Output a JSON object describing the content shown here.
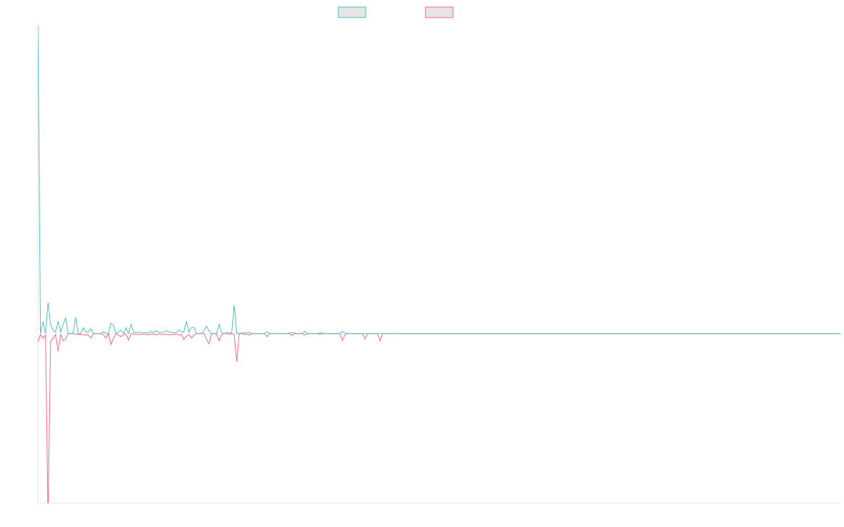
{
  "chart_data": {
    "type": "line",
    "title": "",
    "xlabel": "",
    "ylabel": "",
    "ylim": [
      -55,
      100
    ],
    "grid": false,
    "legend_placement": "top",
    "series": [
      {
        "color": "#4bc0c0",
        "values": [
          100,
          0,
          3.9,
          0,
          10,
          3,
          1,
          0.5,
          4,
          0.5,
          3,
          5,
          0,
          0,
          0.2,
          5.3,
          0,
          0,
          1.9,
          0.5,
          0.5,
          1.5,
          0,
          0,
          0,
          0,
          0.7,
          0,
          0,
          3.4,
          2.6,
          0,
          0.5,
          1.1,
          0,
          1.9,
          0,
          3,
          0.3,
          0.3,
          0.5,
          0.3,
          0.2,
          0.3,
          0.2,
          0.8,
          0.2,
          1,
          0.3,
          0.3,
          0.5,
          1,
          0.5,
          0.5,
          0.2,
          0.3,
          1.2,
          0.5,
          0.5,
          4,
          0.5,
          2,
          2,
          0,
          0,
          0,
          1,
          2.4,
          0.8,
          0,
          0,
          0,
          3,
          0.3,
          0,
          0.3,
          0.3,
          0,
          9.3,
          0,
          0,
          0.2,
          0.2,
          0.3,
          0.3,
          0,
          0,
          0,
          0,
          0,
          0,
          0.6,
          0,
          0,
          0,
          0,
          0,
          0,
          0,
          0,
          0.2,
          0.3,
          0.2,
          0,
          0,
          0,
          0.8,
          0,
          0,
          0,
          0,
          0,
          0.2,
          0.2,
          0,
          0,
          0,
          0,
          0,
          0,
          0,
          0.7,
          0.2,
          0,
          0,
          0,
          0,
          0,
          0,
          0,
          0,
          0,
          0,
          0,
          0,
          0,
          0,
          0,
          0,
          0,
          0,
          0.1,
          0,
          0,
          0,
          0,
          0,
          0,
          0,
          0,
          0,
          0,
          0,
          0,
          0,
          0,
          0,
          0,
          0,
          0,
          0,
          0,
          0,
          0,
          0,
          0,
          0,
          0,
          0,
          0,
          0,
          0,
          0,
          0,
          0,
          0,
          0,
          0,
          0,
          0,
          0,
          0,
          0,
          0,
          0,
          0,
          0,
          0,
          0,
          0,
          0,
          0,
          0,
          0,
          0,
          0,
          0,
          0,
          0,
          0,
          0,
          0,
          0,
          0,
          0,
          0,
          0,
          0,
          0,
          0,
          0,
          0,
          0,
          0,
          0,
          0,
          0,
          0,
          0,
          0,
          0,
          0,
          0,
          0,
          0,
          0,
          0,
          0,
          0,
          0,
          0,
          0,
          0,
          0,
          0,
          0,
          0,
          0,
          0,
          0,
          0,
          0,
          0,
          0,
          0,
          0,
          0,
          0,
          0,
          0,
          0,
          0,
          0,
          0,
          0,
          0,
          0,
          0,
          0,
          0,
          0,
          0,
          0,
          0,
          0,
          0,
          0,
          0,
          0,
          0,
          0,
          0,
          0,
          0,
          0,
          0,
          0,
          0,
          0,
          0,
          0,
          0,
          0,
          0,
          0,
          0,
          0,
          0,
          0,
          0,
          0,
          0,
          0,
          0,
          0,
          0,
          0,
          0,
          0,
          0,
          0,
          0,
          0,
          0,
          0,
          0,
          0,
          0,
          0,
          0,
          0,
          0,
          0,
          0,
          0,
          0,
          0,
          0,
          0,
          0
        ]
      },
      {
        "color": "#ff6384",
        "values": [
          -2.7,
          -0.3,
          -1.5,
          -0.5,
          -60,
          -2.5,
          -1.5,
          -0.3,
          -5.7,
          -0.3,
          -2.3,
          -1.7,
          0,
          0,
          0,
          -0.2,
          -0.3,
          -0.3,
          -0.5,
          -0.4,
          -0.5,
          -1.5,
          0,
          0,
          0,
          0,
          -0.3,
          -1.5,
          0,
          -3.6,
          -1.5,
          0,
          -0.5,
          -1,
          -0.3,
          -0.2,
          -2.1,
          0,
          -0.3,
          -0.2,
          -0.3,
          -0.3,
          -0.2,
          -0.3,
          -0.4,
          -0.2,
          -0.3,
          -0.4,
          -0.2,
          -0.3,
          -0.3,
          -0.2,
          -0.4,
          -0.3,
          -0.3,
          -0.2,
          -0.5,
          -0.3,
          -1.9,
          -0.9,
          -0.3,
          -1.4,
          -0.5,
          0,
          0,
          0,
          0,
          -1.9,
          -3.3,
          0,
          0,
          -0.2,
          -2.4,
          -0.3,
          0,
          0,
          -0.3,
          0,
          -0.3,
          -9.1,
          0,
          0,
          -0.2,
          -0.2,
          -0.5,
          0,
          0,
          0,
          0,
          0,
          0,
          -1,
          0,
          0,
          0,
          0,
          0,
          0,
          0,
          0,
          0,
          -0.6,
          0,
          0,
          0,
          0,
          -0.5,
          0,
          0,
          0,
          0,
          0,
          -0.2,
          0,
          0,
          0,
          0,
          0,
          0,
          0,
          0,
          -2.3,
          -0.4,
          0,
          0,
          0,
          0,
          0,
          0,
          0,
          -1.7,
          0,
          0,
          0,
          0,
          0,
          -2.3,
          0,
          0,
          0,
          0,
          0,
          0,
          0,
          0,
          0,
          0,
          0,
          0,
          0,
          0,
          0,
          0,
          0,
          0,
          0,
          0,
          0,
          0,
          0,
          0,
          0,
          0,
          0,
          0,
          0,
          0,
          0,
          0,
          0,
          0,
          0,
          0,
          0,
          0,
          0,
          0,
          0,
          0,
          0,
          0,
          0,
          0,
          0,
          0,
          0,
          0,
          0,
          0,
          0,
          0,
          0,
          0,
          0,
          0,
          0,
          0,
          0,
          0,
          0,
          0,
          0,
          0,
          0,
          0,
          0,
          0,
          0,
          0,
          0,
          0,
          0,
          0,
          0,
          0,
          0,
          0,
          0,
          0,
          0,
          0,
          0,
          0,
          0,
          0,
          0,
          0,
          0,
          0,
          0,
          0,
          0,
          0,
          0,
          0,
          0,
          0,
          0,
          0,
          0,
          0,
          0,
          0,
          0,
          0,
          0,
          0,
          0,
          0,
          0,
          0,
          0,
          0,
          0,
          0,
          0,
          0,
          0,
          0,
          0,
          0,
          0,
          0,
          0,
          0,
          0,
          0,
          0,
          0,
          0,
          0,
          0,
          0,
          0,
          0,
          0,
          0,
          0,
          0,
          0,
          0,
          0,
          0,
          0,
          0,
          0,
          0,
          0,
          0,
          0,
          0,
          0,
          0,
          0,
          0,
          0,
          0,
          0,
          0,
          0,
          0,
          0,
          0,
          0,
          0,
          0,
          0,
          0,
          0,
          0,
          0,
          0,
          0,
          0,
          0,
          0,
          0,
          0,
          0,
          0
        ]
      }
    ],
    "legend_fill": "#e5e5e5",
    "axis_color": "#e5e5e5"
  }
}
